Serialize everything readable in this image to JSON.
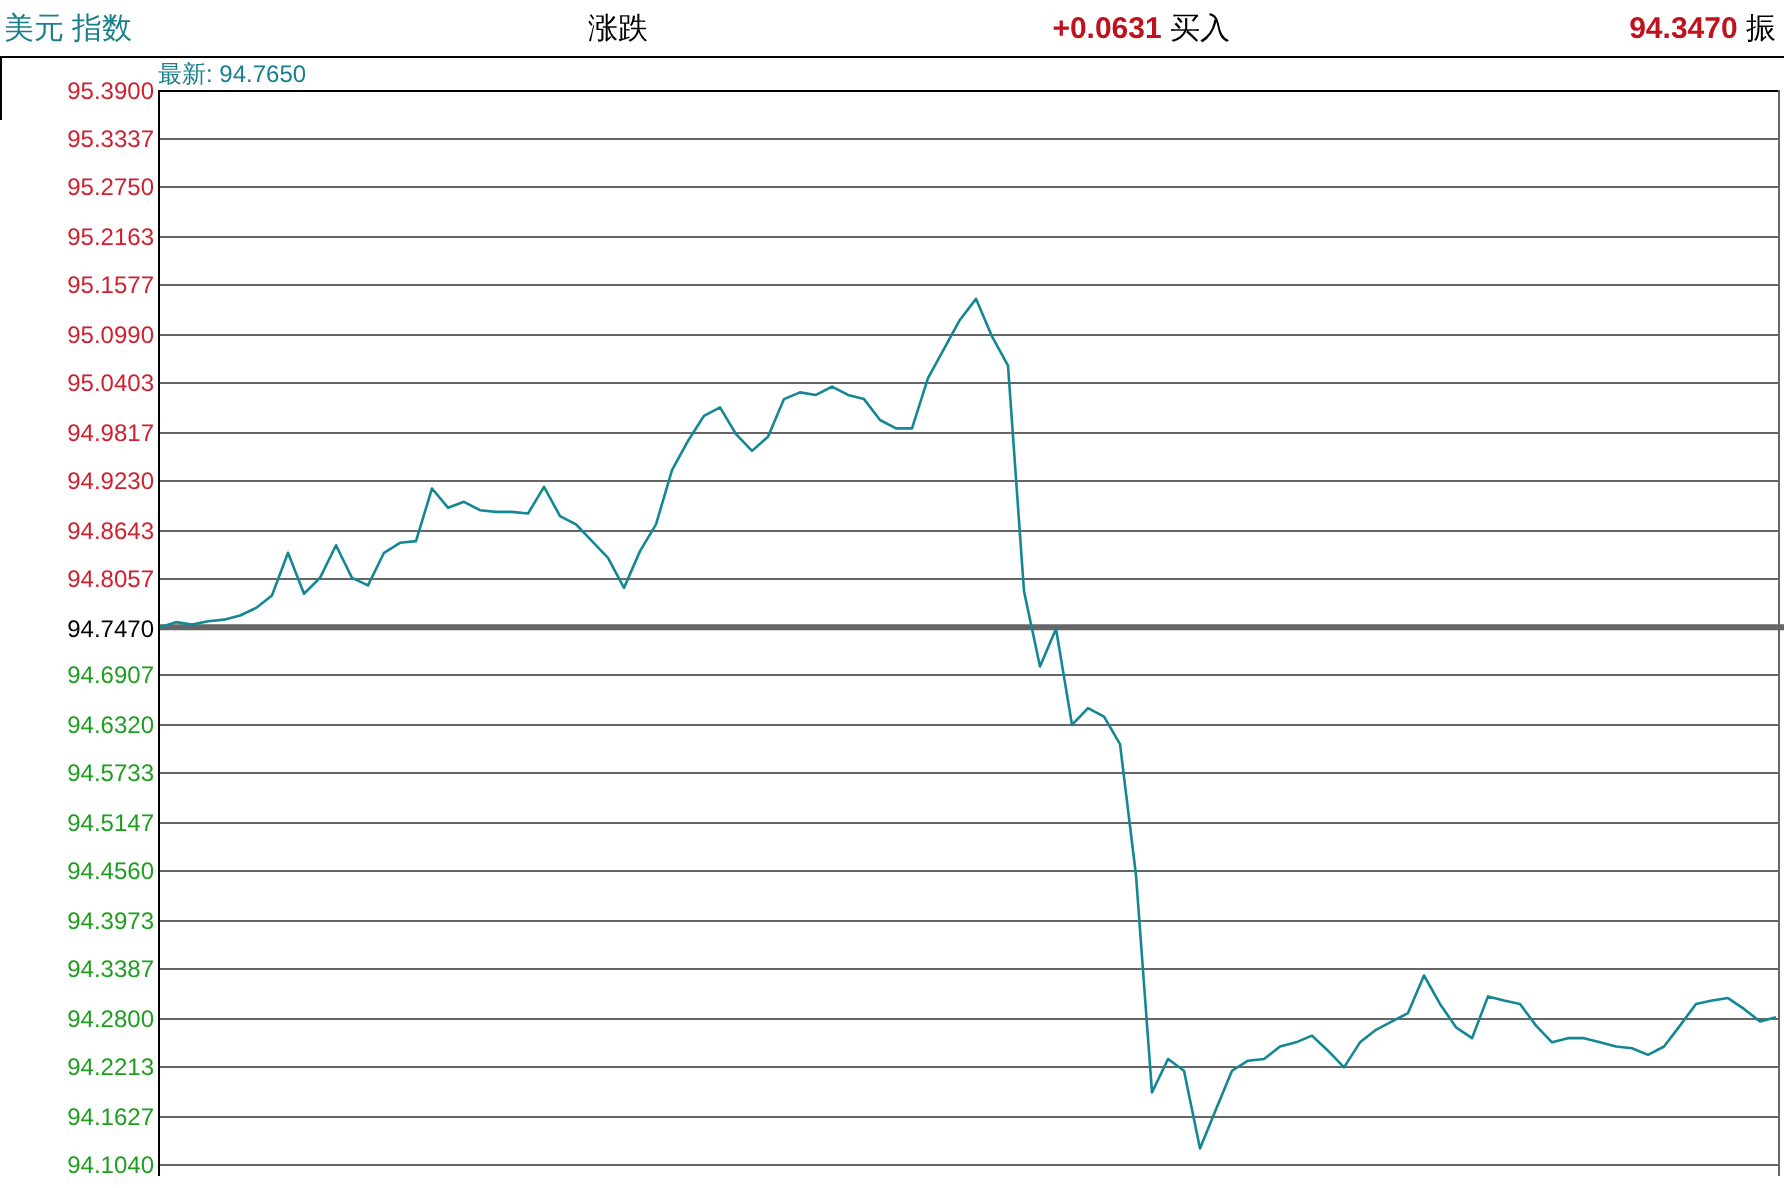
{
  "chart_data": {
    "type": "line",
    "categories": [
      null,
      null,
      null,
      null,
      null,
      null,
      null,
      null,
      null,
      null,
      null,
      null,
      null,
      null,
      null,
      null,
      null,
      null,
      null,
      null,
      null,
      null,
      null,
      null,
      null,
      null,
      null,
      null,
      null,
      null,
      null,
      null,
      null,
      null,
      null,
      null,
      null,
      null,
      null,
      null,
      null,
      null,
      null,
      null,
      null,
      null,
      null,
      null,
      null,
      null,
      null,
      null,
      null,
      null,
      null,
      null,
      null,
      null,
      null,
      null,
      null,
      null,
      null,
      null,
      null,
      null,
      null,
      null,
      null,
      null,
      null,
      null,
      null,
      null,
      null,
      null,
      null,
      null,
      null,
      null,
      null,
      null,
      null,
      null,
      null,
      null,
      null,
      null,
      null,
      null,
      null,
      null,
      null,
      null,
      null,
      null,
      null,
      null,
      null,
      null,
      null,
      null
    ],
    "series": [
      {
        "color": "#138892",
        "values": [
          94.747,
          94.753,
          94.75,
          94.754,
          94.756,
          94.761,
          94.77,
          94.785,
          94.836,
          94.787,
          94.806,
          94.845,
          94.806,
          94.797,
          94.836,
          94.848,
          94.85,
          94.913,
          94.89,
          94.897,
          94.887,
          94.885,
          94.885,
          94.883,
          94.915,
          94.88,
          94.87,
          94.85,
          94.83,
          94.794,
          94.838,
          94.87,
          94.935,
          94.97,
          95.0,
          95.01,
          94.978,
          94.958,
          94.975,
          95.02,
          95.028,
          95.025,
          95.035,
          95.025,
          95.02,
          94.995,
          94.985,
          94.985,
          95.045,
          95.08,
          95.115,
          95.14,
          95.095,
          95.06,
          94.79,
          94.7,
          94.745,
          94.63,
          94.65,
          94.64,
          94.607,
          94.45,
          94.19,
          94.23,
          94.216,
          94.123,
          94.17,
          94.216,
          94.228,
          94.23,
          94.245,
          94.25,
          94.258,
          94.24,
          94.22,
          94.25,
          94.265,
          94.275,
          94.285,
          94.33,
          94.296,
          94.268,
          94.255,
          94.305,
          94.3,
          94.296,
          94.27,
          94.25,
          94.255,
          94.255,
          94.25,
          94.245,
          94.243,
          94.235,
          94.245,
          94.27,
          94.296,
          94.3,
          94.303,
          94.29,
          94.275,
          94.28
        ]
      }
    ],
    "ylim": [
      94.09,
      95.39
    ],
    "yticks": [
      {
        "value": 95.39,
        "label": "95.3900"
      },
      {
        "value": 95.3337,
        "label": "95.3337"
      },
      {
        "value": 95.275,
        "label": "95.2750"
      },
      {
        "value": 95.2163,
        "label": "95.2163"
      },
      {
        "value": 95.1577,
        "label": "95.1577"
      },
      {
        "value": 95.099,
        "label": "95.0990"
      },
      {
        "value": 95.0403,
        "label": "95.0403"
      },
      {
        "value": 94.9817,
        "label": "94.9817"
      },
      {
        "value": 94.923,
        "label": "94.9230"
      },
      {
        "value": 94.8643,
        "label": "94.8643"
      },
      {
        "value": 94.8057,
        "label": "94.8057"
      },
      {
        "value": 94.747,
        "label": "94.7470"
      },
      {
        "value": 94.6907,
        "label": "94.6907"
      },
      {
        "value": 94.632,
        "label": "94.6320"
      },
      {
        "value": 94.5733,
        "label": "94.5733"
      },
      {
        "value": 94.5147,
        "label": "94.5147"
      },
      {
        "value": 94.456,
        "label": "94.4560"
      },
      {
        "value": 94.3973,
        "label": "94.3973"
      },
      {
        "value": 94.3387,
        "label": "94.3387"
      },
      {
        "value": 94.28,
        "label": "94.2800"
      },
      {
        "value": 94.2213,
        "label": "94.2213"
      },
      {
        "value": 94.1627,
        "label": "94.1627"
      },
      {
        "value": 94.104,
        "label": "94.1040"
      }
    ],
    "grid": "y",
    "tick_labels": "y",
    "ref_lines": [
      {
        "axis": "y",
        "value": 94.747,
        "color": "#666666"
      }
    ],
    "annotations": [
      "美元 指数",
      "涨跌",
      "+0.0631 买入",
      "94.3470 振",
      "最新: 94.7650"
    ]
  }
}
